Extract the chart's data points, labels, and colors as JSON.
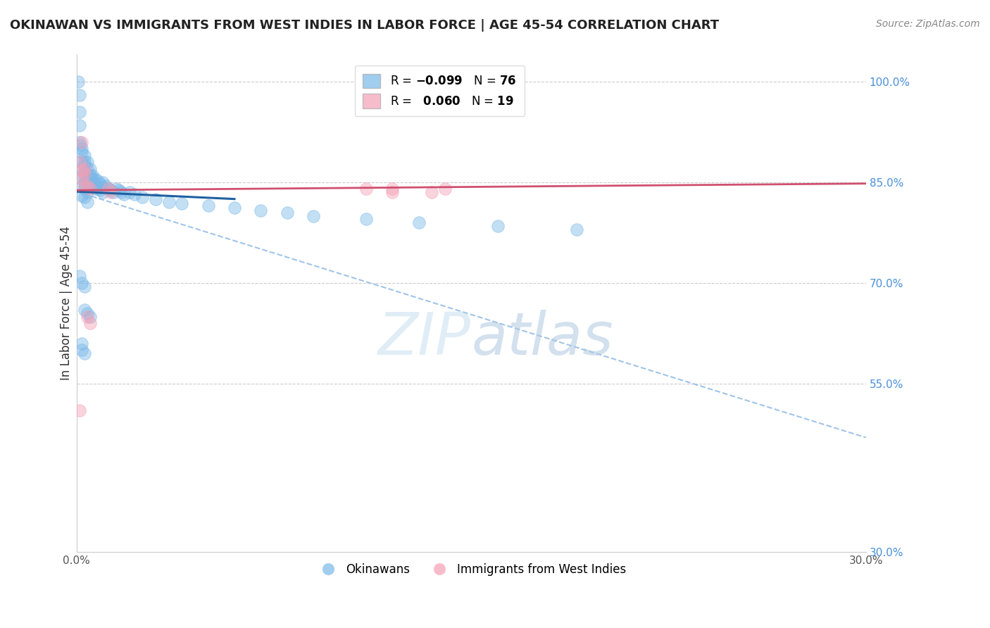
{
  "title": "OKINAWAN VS IMMIGRANTS FROM WEST INDIES IN LABOR FORCE | AGE 45-54 CORRELATION CHART",
  "source": "Source: ZipAtlas.com",
  "ylabel": "In Labor Force | Age 45-54",
  "xlim": [
    0.0,
    0.3
  ],
  "ylim": [
    0.3,
    1.04
  ],
  "xticks": [
    0.0,
    0.05,
    0.1,
    0.15,
    0.2,
    0.25,
    0.3
  ],
  "xticklabels": [
    "0.0%",
    "",
    "",
    "",
    "",
    "",
    "30.0%"
  ],
  "yticks_right": [
    1.0,
    0.85,
    0.7,
    0.55,
    0.3
  ],
  "ytick_labels_right": [
    "100.0%",
    "85.0%",
    "70.0%",
    "55.0%",
    "30.0%"
  ],
  "color_blue": "#7ab8e8",
  "color_pink": "#f4a0b5",
  "color_blue_line": "#2060a0",
  "color_pink_line": "#d05070",
  "color_blue_dashed": "#a0c4e8",
  "color_axis_labels": "#4a90d9",
  "background": "#ffffff",
  "okinawan_x": [
    0.0005,
    0.001,
    0.001,
    0.001,
    0.001,
    0.0015,
    0.002,
    0.002,
    0.002,
    0.002,
    0.002,
    0.003,
    0.003,
    0.003,
    0.003,
    0.003,
    0.004,
    0.004,
    0.004,
    0.004,
    0.005,
    0.005,
    0.005,
    0.005,
    0.006,
    0.006,
    0.006,
    0.007,
    0.007,
    0.007,
    0.008,
    0.008,
    0.009,
    0.009,
    0.01,
    0.01,
    0.01,
    0.011,
    0.012,
    0.013,
    0.014,
    0.015,
    0.016,
    0.017,
    0.018,
    0.02,
    0.022,
    0.025,
    0.03,
    0.035,
    0.04,
    0.05,
    0.06,
    0.07,
    0.08,
    0.09,
    0.11,
    0.13,
    0.16,
    0.19,
    0.002,
    0.003,
    0.004,
    0.002,
    0.003,
    0.001,
    0.002,
    0.003,
    0.003,
    0.004,
    0.005,
    0.002,
    0.002,
    0.003,
    0.004
  ],
  "okinawan_y": [
    1.0,
    0.98,
    0.955,
    0.935,
    0.91,
    0.905,
    0.9,
    0.895,
    0.88,
    0.87,
    0.86,
    0.89,
    0.88,
    0.875,
    0.86,
    0.85,
    0.88,
    0.87,
    0.86,
    0.85,
    0.87,
    0.86,
    0.855,
    0.845,
    0.86,
    0.855,
    0.845,
    0.855,
    0.848,
    0.84,
    0.852,
    0.84,
    0.848,
    0.838,
    0.85,
    0.842,
    0.835,
    0.845,
    0.84,
    0.838,
    0.835,
    0.84,
    0.838,
    0.835,
    0.832,
    0.835,
    0.832,
    0.828,
    0.825,
    0.82,
    0.818,
    0.815,
    0.812,
    0.808,
    0.805,
    0.8,
    0.795,
    0.79,
    0.785,
    0.78,
    0.845,
    0.84,
    0.835,
    0.83,
    0.828,
    0.71,
    0.7,
    0.695,
    0.66,
    0.655,
    0.65,
    0.61,
    0.6,
    0.595,
    0.82
  ],
  "westindies_x": [
    0.001,
    0.002,
    0.003,
    0.004,
    0.005,
    0.012,
    0.013,
    0.11,
    0.12,
    0.135,
    0.14,
    0.002,
    0.003,
    0.004,
    0.005,
    0.12,
    0.002,
    0.001,
    0.003
  ],
  "westindies_y": [
    0.88,
    0.855,
    0.845,
    0.845,
    0.84,
    0.84,
    0.835,
    0.84,
    0.835,
    0.835,
    0.84,
    0.868,
    0.862,
    0.65,
    0.64,
    0.84,
    0.91,
    0.51,
    0.87
  ],
  "blue_trendline_x": [
    0.0,
    0.06
  ],
  "blue_trendline_y": [
    0.836,
    0.825
  ],
  "dashed_line_x": [
    0.0,
    0.3
  ],
  "dashed_line_y": [
    0.836,
    0.47
  ],
  "pink_trendline_x": [
    0.0,
    0.3
  ],
  "pink_trendline_y": [
    0.838,
    0.848
  ]
}
